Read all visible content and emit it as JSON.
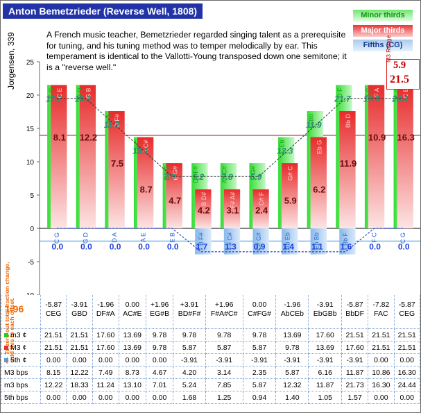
{
  "title": "Anton Bemetzrieder (Reverse Well, 1808)",
  "description": "A French music teacher, Bemetzrieder regarded singing talent as a prerequisite for tuning, and his tuning method was to temper melodically by ear. This temperament is identical to the Vallotti-Young transposed down one semitone; it is a \"reverse well.\"",
  "legend": {
    "minor": "Minor thirds",
    "major": "Major thirds",
    "fifths": "Fifths (CG)"
  },
  "range": {
    "label": "M3 Range",
    "low": "5.9",
    "high": "21.5"
  },
  "y_title": "Jorgensen, 339",
  "side_note_1": "<-- To zero out total fraction change,",
  "side_note_2": "add this to each offset.",
  "offset_value": "1.96",
  "colors": {
    "minor": "#22cc22",
    "major": "#e83030",
    "fifth": "#5b9bd5",
    "title_bg": "#2233a8",
    "offset": "#ec6a0a"
  },
  "chart_data": {
    "type": "bar",
    "ylim": [
      -10,
      25
    ],
    "yticks": [
      -10,
      -5,
      0,
      5,
      10,
      15,
      20,
      25
    ],
    "reference_line": 13.96,
    "keys": [
      "C",
      "G",
      "D",
      "A",
      "E",
      "B",
      "F#",
      "C#",
      "G#",
      "Eb",
      "Bb",
      "F",
      "C"
    ],
    "major_third_labels": [
      "C E",
      "G B",
      "D F#",
      "A C#",
      "E G#",
      "B D#",
      "F# A#",
      "C# F",
      "G# C",
      "Eb G",
      "Bb D",
      "F A",
      "C E"
    ],
    "minor_third_labels": [
      "E G",
      "B D",
      "F# A",
      "C# E",
      "G# B",
      "D# F#",
      "A# C#",
      "F G#",
      "C Eb",
      "G Bb",
      "D F",
      "A C",
      "E G"
    ],
    "fifth_labels": [
      "C G",
      "G D",
      "D A",
      "A E",
      "E B",
      "B F#",
      "F# C#",
      "C# G#",
      "Ab Eb",
      "Eb Bb",
      "Bb F",
      "F C",
      "C G"
    ],
    "major_thirds": [
      21.51,
      21.51,
      17.6,
      13.69,
      9.78,
      5.87,
      5.87,
      5.87,
      9.78,
      13.69,
      17.6,
      21.51,
      21.51
    ],
    "minor_thirds": [
      21.51,
      21.51,
      17.6,
      13.69,
      9.78,
      9.78,
      9.78,
      9.78,
      13.69,
      17.6,
      21.51,
      21.51,
      21.51
    ],
    "fifths": [
      0.0,
      0.0,
      0.0,
      0.0,
      0.0,
      -3.91,
      -3.91,
      -3.91,
      -3.91,
      -3.91,
      -3.91,
      0.0,
      0.0
    ],
    "major_bps_labels": [
      "8.1",
      "12.2",
      "7.5",
      "8.7",
      "4.7",
      "4.2",
      "3.1",
      "2.4",
      "5.9",
      "6.2",
      "11.9",
      "10.9",
      "16.3"
    ],
    "minor_bps_labels": [
      "12.2",
      "18.3",
      "11.2",
      "13.1",
      "7.0",
      "5.2",
      "7.8",
      "5.9",
      "12.3",
      "11.9",
      "21.7",
      "16.3",
      "24.4"
    ],
    "fifth_bps_labels": [
      "0.0",
      "0.0",
      "0.0",
      "0.0",
      "0.0",
      "1.7",
      "1.3",
      "0.9",
      "1.4",
      "1.1",
      "1.6",
      "0.0",
      "0.0"
    ]
  },
  "table": {
    "offsets": [
      "-5.87",
      "-3.91",
      "-1.96",
      "0.00",
      "+1.96",
      "+3.91",
      "+1.96",
      "0.00",
      "-1.96",
      "-3.91",
      "-5.87",
      "-7.82",
      "-5.87"
    ],
    "offset_names": [
      "CEG",
      "GBD",
      "DF#A",
      "AC#E",
      "EG#B",
      "BD#F#",
      "F#A#C#",
      "C#FG#",
      "AbCEb",
      "EbGBb",
      "BbDF",
      "FAC",
      "CEG"
    ],
    "rows": [
      {
        "label": "m3 ¢",
        "values": [
          "21.51",
          "21.51",
          "17.60",
          "13.69",
          "9.78",
          "9.78",
          "9.78",
          "9.78",
          "13.69",
          "17.60",
          "21.51",
          "21.51",
          "21.51"
        ]
      },
      {
        "label": "M3 ¢",
        "values": [
          "21.51",
          "21.51",
          "17.60",
          "13.69",
          "9.78",
          "5.87",
          "5.87",
          "5.87",
          "9.78",
          "13.69",
          "17.60",
          "21.51",
          "21.51"
        ]
      },
      {
        "label": "5th ¢",
        "values": [
          "0.00",
          "0.00",
          "0.00",
          "0.00",
          "0.00",
          "-3.91",
          "-3.91",
          "-3.91",
          "-3.91",
          "-3.91",
          "-3.91",
          "0.00",
          "0.00"
        ]
      },
      {
        "label": "M3 bps",
        "values": [
          "8.15",
          "12.22",
          "7.49",
          "8.73",
          "4.67",
          "4.20",
          "3.14",
          "2.35",
          "5.87",
          "6.16",
          "11.87",
          "10.86",
          "16.30"
        ]
      },
      {
        "label": "m3 bps",
        "values": [
          "12.22",
          "18.33",
          "11.24",
          "13.10",
          "7.01",
          "5.24",
          "7.85",
          "5.87",
          "12.32",
          "11.87",
          "21.73",
          "16.30",
          "24.44"
        ]
      },
      {
        "label": "5th bps",
        "values": [
          "0.00",
          "0.00",
          "0.00",
          "0.00",
          "0.00",
          "1.68",
          "1.25",
          "0.94",
          "1.40",
          "1.05",
          "1.57",
          "0.00",
          "0.00"
        ]
      }
    ]
  }
}
